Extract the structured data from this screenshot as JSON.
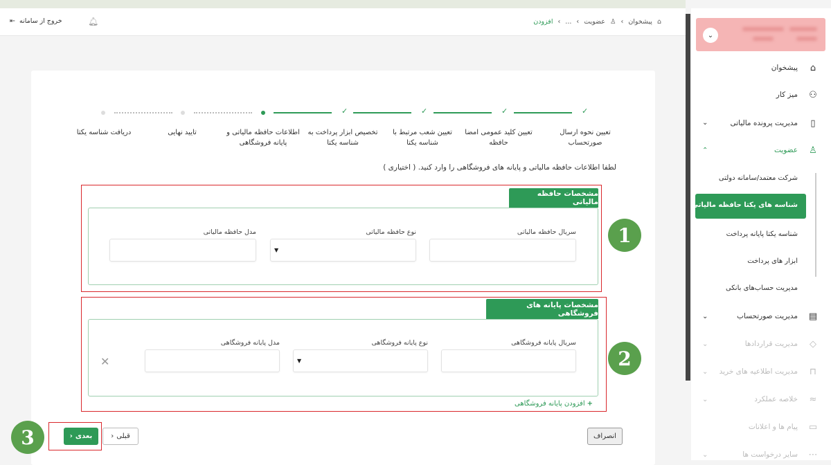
{
  "header": {
    "breadcrumb": [
      {
        "label": "پیشخوان",
        "icon": "home-icon"
      },
      {
        "label": "عضویت",
        "icon": "user-icon"
      },
      {
        "label": "..."
      },
      {
        "label": "افزودن"
      }
    ],
    "logout_label": "خروج از سامانه",
    "accent": "#2e9a57"
  },
  "stepper": {
    "steps": [
      {
        "label": "تعیین نحوه ارسال صورتحساب",
        "status": "done"
      },
      {
        "label": "تعیین کلید عمومی امضا حافظه",
        "status": "done"
      },
      {
        "label": "تعیین شعب مرتبط با شناسه یکتا",
        "status": "done"
      },
      {
        "label": "تخصیص ابزار پرداخت به شناسه یکتا",
        "status": "done"
      },
      {
        "label": "اطلاعات حافظه مالیاتی و پایانه فروشگاهی",
        "status": "current"
      },
      {
        "label": "تایید نهایی",
        "status": "pending"
      },
      {
        "label": "دریافت شناسه یکتا",
        "status": "pending"
      }
    ]
  },
  "form": {
    "instruction": "لطفا اطلاعات حافظه مالیاتی و پایانه های فروشگاهی را وارد کنید. ( اختیاری )",
    "section1": {
      "title": "مشخصات حافظه مالیاتی",
      "serial_label": "سریال حافظه مالیاتی",
      "type_label": "نوع حافظه مالیاتی",
      "model_label": "مدل حافظه مالیاتی",
      "serial_value": "",
      "type_value": "",
      "model_value": ""
    },
    "section2": {
      "title": "مشخصات پایانه های فروشگاهی",
      "serial_label": "سریال پایانه فروشگاهی",
      "type_label": "نوع پایانه فروشگاهی",
      "model_label": "مدل پایانه فروشگاهی",
      "serial_value": "",
      "type_value": "",
      "model_value": "",
      "add_label": "افزودن پایانه فروشگاهی"
    },
    "next_label": "بعدی",
    "prev_label": "قبلی",
    "cancel_label": "انصراف"
  },
  "annotations": [
    "1",
    "2",
    "3"
  ],
  "sidebar": {
    "items": [
      {
        "label": "پیشخوان",
        "icon": "home-icon"
      },
      {
        "label": "میز کار",
        "icon": "workspace-icon"
      },
      {
        "label": "مدیریت پرونده مالیاتی",
        "icon": "file-icon"
      },
      {
        "label": "عضویت",
        "icon": "user-icon",
        "expanded": true
      },
      {
        "label": "مدیریت صورتحساب",
        "icon": "invoice-icon"
      },
      {
        "label": "مدیریت قراردادها",
        "icon": "handshake-icon",
        "disabled": true
      },
      {
        "label": "مدیریت اطلاعیه های خرید",
        "icon": "bag-icon",
        "disabled": true
      },
      {
        "label": "خلاصه عملکرد",
        "icon": "chart-icon",
        "disabled": true
      },
      {
        "label": "پیام ها و اعلانات",
        "icon": "message-icon",
        "disabled": true
      },
      {
        "label": "سایر درخواست ها",
        "icon": "more-icon",
        "disabled": true
      }
    ],
    "subitems": [
      {
        "label": "شرکت معتمد/سامانه دولتی"
      },
      {
        "label": "شناسه های یکتا حافظه مالیاتی",
        "active": true
      },
      {
        "label": "شناسه یکتا پایانه پرداخت"
      },
      {
        "label": "ابزار های پرداخت"
      },
      {
        "label": "مدیریت حساب‌های بانکی"
      }
    ]
  }
}
